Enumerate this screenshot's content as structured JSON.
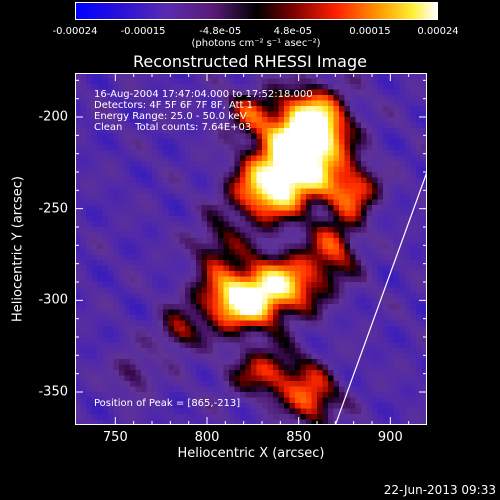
{
  "colorbar": {
    "ticks": [
      "-0.00024",
      "-0.00015",
      "-4.8e-05",
      "4.8e-05",
      "0.00015",
      "0.00024"
    ],
    "tick_values": [
      -0.00024,
      -0.00015,
      -4.8e-05,
      4.8e-05,
      0.00015,
      0.00024
    ],
    "range": [
      -0.00024,
      0.00024
    ],
    "unit": "(photons cm⁻² s⁻¹ asec⁻²)"
  },
  "chart_data": {
    "type": "heatmap",
    "title": "Reconstructed RHESSI Image",
    "xlabel": "Heliocentric X (arcsec)",
    "ylabel": "Heliocentric Y (arcsec)",
    "xlim": [
      728,
      920
    ],
    "ylim": [
      -368,
      -176
    ],
    "x_ticks": [
      750,
      800,
      850,
      900
    ],
    "y_ticks": [
      -200,
      -250,
      -300,
      -350
    ],
    "x_tick_labels": [
      "750",
      "800",
      "850",
      "900"
    ],
    "y_tick_labels": [
      "-200",
      "-250",
      "-300",
      "-350"
    ],
    "colormap": "rhessi (blue-purple-red-yellow-white)",
    "info_lines": [
      "16-Aug-2004 17:47:04.000 to 17:52:18.000",
      "Detectors: 4F 5F 6F 7F 8F, Att 1",
      "Energy Range: 25.0 - 50.0 keV",
      "Clean    Total counts: 7.64E+03"
    ],
    "peak_label": "Position of Peak = [865,-213]",
    "peak": [
      865,
      -213
    ],
    "limb_line": [
      [
        870,
        -368
      ],
      [
        920,
        -230
      ]
    ],
    "sources": [
      {
        "x": 857,
        "y": -205,
        "sx": 14,
        "sy": 14,
        "amp": 1.0
      },
      {
        "x": 847,
        "y": -228,
        "sx": 16,
        "sy": 14,
        "amp": 0.85
      },
      {
        "x": 830,
        "y": -243,
        "sx": 14,
        "sy": 12,
        "amp": 0.55
      },
      {
        "x": 818,
        "y": -300,
        "sx": 16,
        "sy": 12,
        "amp": 0.9
      },
      {
        "x": 845,
        "y": -290,
        "sx": 16,
        "sy": 12,
        "amp": 0.6
      },
      {
        "x": 870,
        "y": -270,
        "sx": 10,
        "sy": 12,
        "amp": 0.45
      },
      {
        "x": 880,
        "y": -240,
        "sx": 10,
        "sy": 10,
        "amp": 0.55
      },
      {
        "x": 835,
        "y": -340,
        "sx": 16,
        "sy": 10,
        "amp": 0.5
      },
      {
        "x": 858,
        "y": -355,
        "sx": 10,
        "sy": 10,
        "amp": 0.55
      },
      {
        "x": 805,
        "y": -270,
        "sx": 10,
        "sy": 10,
        "amp": 0.35
      },
      {
        "x": 784,
        "y": -318,
        "sx": 8,
        "sy": 8,
        "amp": 0.4
      },
      {
        "x": 760,
        "y": -340,
        "sx": 8,
        "sy": 8,
        "amp": 0.3
      },
      {
        "x": 823,
        "y": -198,
        "sx": 10,
        "sy": 10,
        "amp": 0.4
      }
    ]
  },
  "datestamp": "22-Jun-2013 09:33"
}
